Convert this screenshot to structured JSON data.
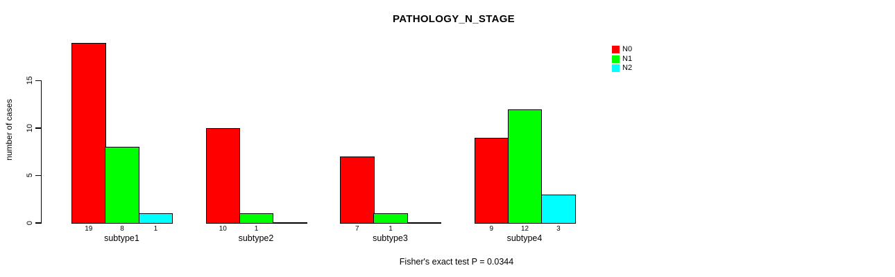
{
  "window": {
    "background": "#ffffff",
    "text_color": "#000000"
  },
  "chart_data": {
    "type": "bar",
    "title": "PATHOLOGY_N_STAGE",
    "xlabel": "",
    "ylabel": "number of cases",
    "categories": [
      "subtype1",
      "subtype2",
      "subtype3",
      "subtype4"
    ],
    "series": [
      {
        "name": "N0",
        "color": "#ff0000",
        "values": [
          19,
          10,
          7,
          9
        ]
      },
      {
        "name": "N1",
        "color": "#00ff00",
        "values": [
          8,
          1,
          1,
          12
        ]
      },
      {
        "name": "N2",
        "color": "#00ffff",
        "values": [
          1,
          0,
          0,
          3
        ]
      }
    ],
    "value_labels": [
      [
        "19",
        "8",
        "1"
      ],
      [
        "10",
        "1",
        ""
      ],
      [
        "7",
        "1",
        ""
      ],
      [
        "9",
        "12",
        "3"
      ]
    ],
    "yticks": [
      0,
      5,
      10,
      15
    ],
    "ylim": [
      0,
      19
    ],
    "grid": false,
    "legend_position": "top-right",
    "legend_entries": [
      "N0",
      "N1",
      "N2"
    ],
    "annotation": "Fisher's exact test P = 0.0344",
    "axis_color": "#000000"
  }
}
